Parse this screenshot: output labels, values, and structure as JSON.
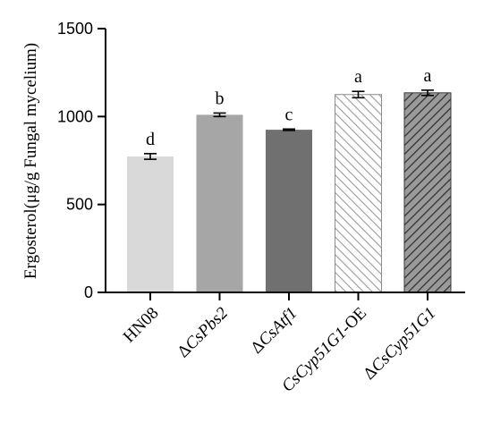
{
  "chart_data": {
    "type": "bar",
    "ylabel": "Ergosterol(μg/g Fungal mycelium)",
    "ylim": [
      0,
      1500
    ],
    "yticks": [
      0,
      500,
      1000,
      1500
    ],
    "grid": false,
    "categories": [
      {
        "prefix": "",
        "italic": "",
        "suffix": "HN08"
      },
      {
        "prefix": "Δ",
        "italic": "CsPbs2",
        "suffix": ""
      },
      {
        "prefix": "Δ",
        "italic": "CsAtf1",
        "suffix": ""
      },
      {
        "prefix": "",
        "italic": "CsCyp51G1",
        "suffix": "-OE"
      },
      {
        "prefix": "Δ",
        "italic": "CsCyp51G1",
        "suffix": ""
      }
    ],
    "values": [
      773,
      1010,
      925,
      1125,
      1135
    ],
    "errors": [
      16,
      10,
      4,
      18,
      15
    ],
    "significance": [
      "d",
      "b",
      "c",
      "a",
      "a"
    ],
    "bar_styles": [
      {
        "fill": "#d9d9d9",
        "pattern": "solid"
      },
      {
        "fill": "#a6a6a6",
        "pattern": "solid"
      },
      {
        "fill": "#707070",
        "pattern": "solid"
      },
      {
        "fill": "#ffffff",
        "pattern": "hatch-light",
        "stroke": "#8c8c8c"
      },
      {
        "fill": "#9a9a9a",
        "pattern": "hatch-dark",
        "stroke": "#3a3a3a"
      }
    ]
  }
}
